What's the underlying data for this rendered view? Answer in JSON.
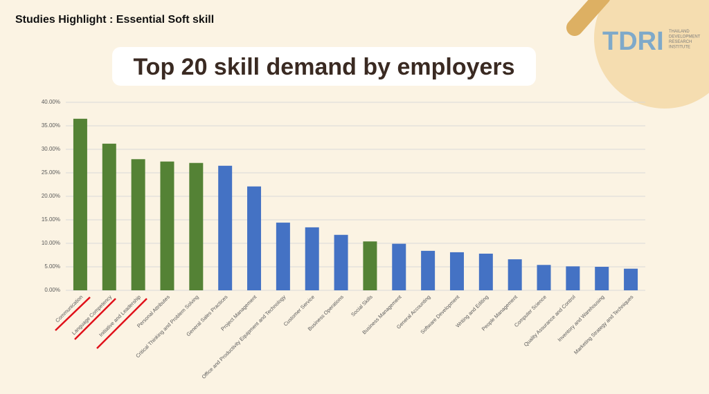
{
  "header": {
    "kicker": "Studies Highlight : Essential Soft skill",
    "logo": "TDRI",
    "logo_subtitle": [
      "THAILAND",
      "DEVELOPMENT",
      "RESEARCH",
      "INSTITUTE"
    ]
  },
  "chart_data": {
    "type": "bar",
    "title": "Top 20 skill demand by employers",
    "categories": [
      "Communication",
      "Language Competency",
      "Initiative and Leadership",
      "Personal Attributes",
      "Critical Thinking and Problem Solving",
      "General Sales Practices",
      "Project Management",
      "Office and Productivity Equipment and Technology",
      "Customer Service",
      "Business Operations",
      "Social Skills",
      "Business Management",
      "General Accounting",
      "Software Development",
      "Writing and Editing",
      "People Management",
      "Computer Science",
      "Quality Assurance and Control",
      "Inventory and Warehousing",
      "Marketing Strategy and Techniques"
    ],
    "values": [
      36.5,
      31.2,
      27.9,
      27.4,
      27.1,
      26.5,
      22.1,
      14.4,
      13.4,
      11.8,
      10.4,
      9.9,
      8.4,
      8.1,
      7.8,
      6.6,
      5.4,
      5.1,
      5.0,
      4.6
    ],
    "colors": [
      "#548235",
      "#548235",
      "#548235",
      "#548235",
      "#548235",
      "#4472c4",
      "#4472c4",
      "#4472c4",
      "#4472c4",
      "#4472c4",
      "#548235",
      "#4472c4",
      "#4472c4",
      "#4472c4",
      "#4472c4",
      "#4472c4",
      "#4472c4",
      "#4472c4",
      "#4472c4",
      "#4472c4"
    ],
    "ylim": [
      0,
      40
    ],
    "yticks": [
      {
        "value": 0,
        "label": "0.00%"
      },
      {
        "value": 5,
        "label": "5.00%"
      },
      {
        "value": 10,
        "label": "10.00%"
      },
      {
        "value": 15,
        "label": "15.00%"
      },
      {
        "value": 20,
        "label": "20.00%"
      },
      {
        "value": 25,
        "label": "25.00%"
      },
      {
        "value": 30,
        "label": "30.00%"
      },
      {
        "value": 35,
        "label": "35.00%"
      },
      {
        "value": 40,
        "label": "40.00%"
      }
    ],
    "grid": true
  }
}
